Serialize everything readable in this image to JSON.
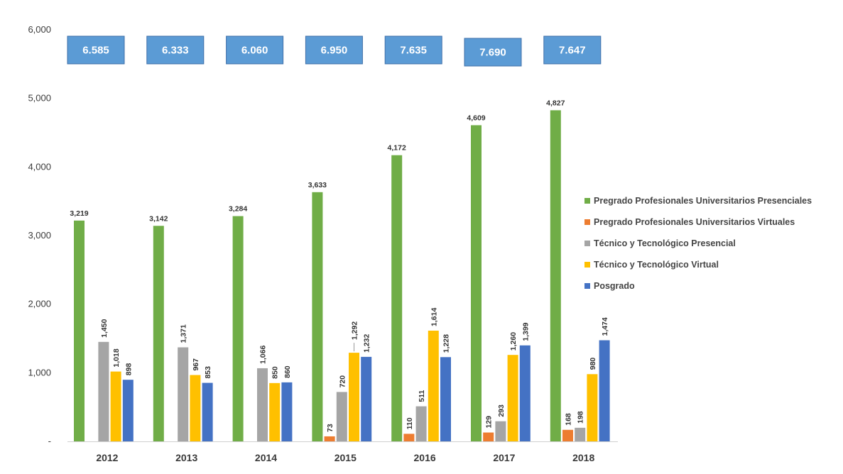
{
  "chart_data": {
    "type": "bar",
    "categories": [
      "2012",
      "2013",
      "2014",
      "2015",
      "2016",
      "2017",
      "2018"
    ],
    "yticks": [
      "-",
      "1,000",
      "2,000",
      "3,000",
      "4,000",
      "5,000",
      "6,000"
    ],
    "ylim": [
      0,
      6000
    ],
    "grid": false,
    "legend_position": "right",
    "series": [
      {
        "name": "Pregrado Profesionales Universitarios Presenciales",
        "color": "#70ad47",
        "values": [
          3219,
          3142,
          3284,
          3633,
          4172,
          4609,
          4827
        ],
        "labels": [
          "3,219",
          "3,142",
          "3,284",
          "3,633",
          "4,172",
          "4,609",
          "4,827"
        ]
      },
      {
        "name": "Pregrado Profesionales Universitarios Virtuales",
        "color": "#ed7d31",
        "values": [
          null,
          null,
          null,
          73,
          110,
          129,
          168
        ],
        "labels": [
          "",
          "",
          "",
          "73",
          "110",
          "129",
          "168"
        ]
      },
      {
        "name": "Técnico y Tecnológico Presencial",
        "color": "#a5a5a5",
        "values": [
          1450,
          1371,
          1066,
          720,
          511,
          293,
          198
        ],
        "labels": [
          "1,450",
          "1,371",
          "1,066",
          "720",
          "511",
          "293",
          "198"
        ]
      },
      {
        "name": "Técnico y Tecnológico Virtual",
        "color": "#ffc000",
        "values": [
          1018,
          967,
          850,
          1292,
          1614,
          1260,
          980
        ],
        "labels": [
          "1,018",
          "967",
          "850",
          "1,292",
          "1,614",
          "1,260",
          "980"
        ]
      },
      {
        "name": "Posgrado",
        "color": "#4472c4",
        "values": [
          898,
          853,
          860,
          1232,
          1228,
          1399,
          1474
        ],
        "labels": [
          "898",
          "853",
          "860",
          "1,232",
          "1,228",
          "1,399",
          "1,474"
        ]
      }
    ],
    "totals": [
      "6.585",
      "6.333",
      "6.060",
      "6.950",
      "7.635",
      "7.690",
      "7.647"
    ],
    "totals_box_color": "#5b9bd5"
  }
}
